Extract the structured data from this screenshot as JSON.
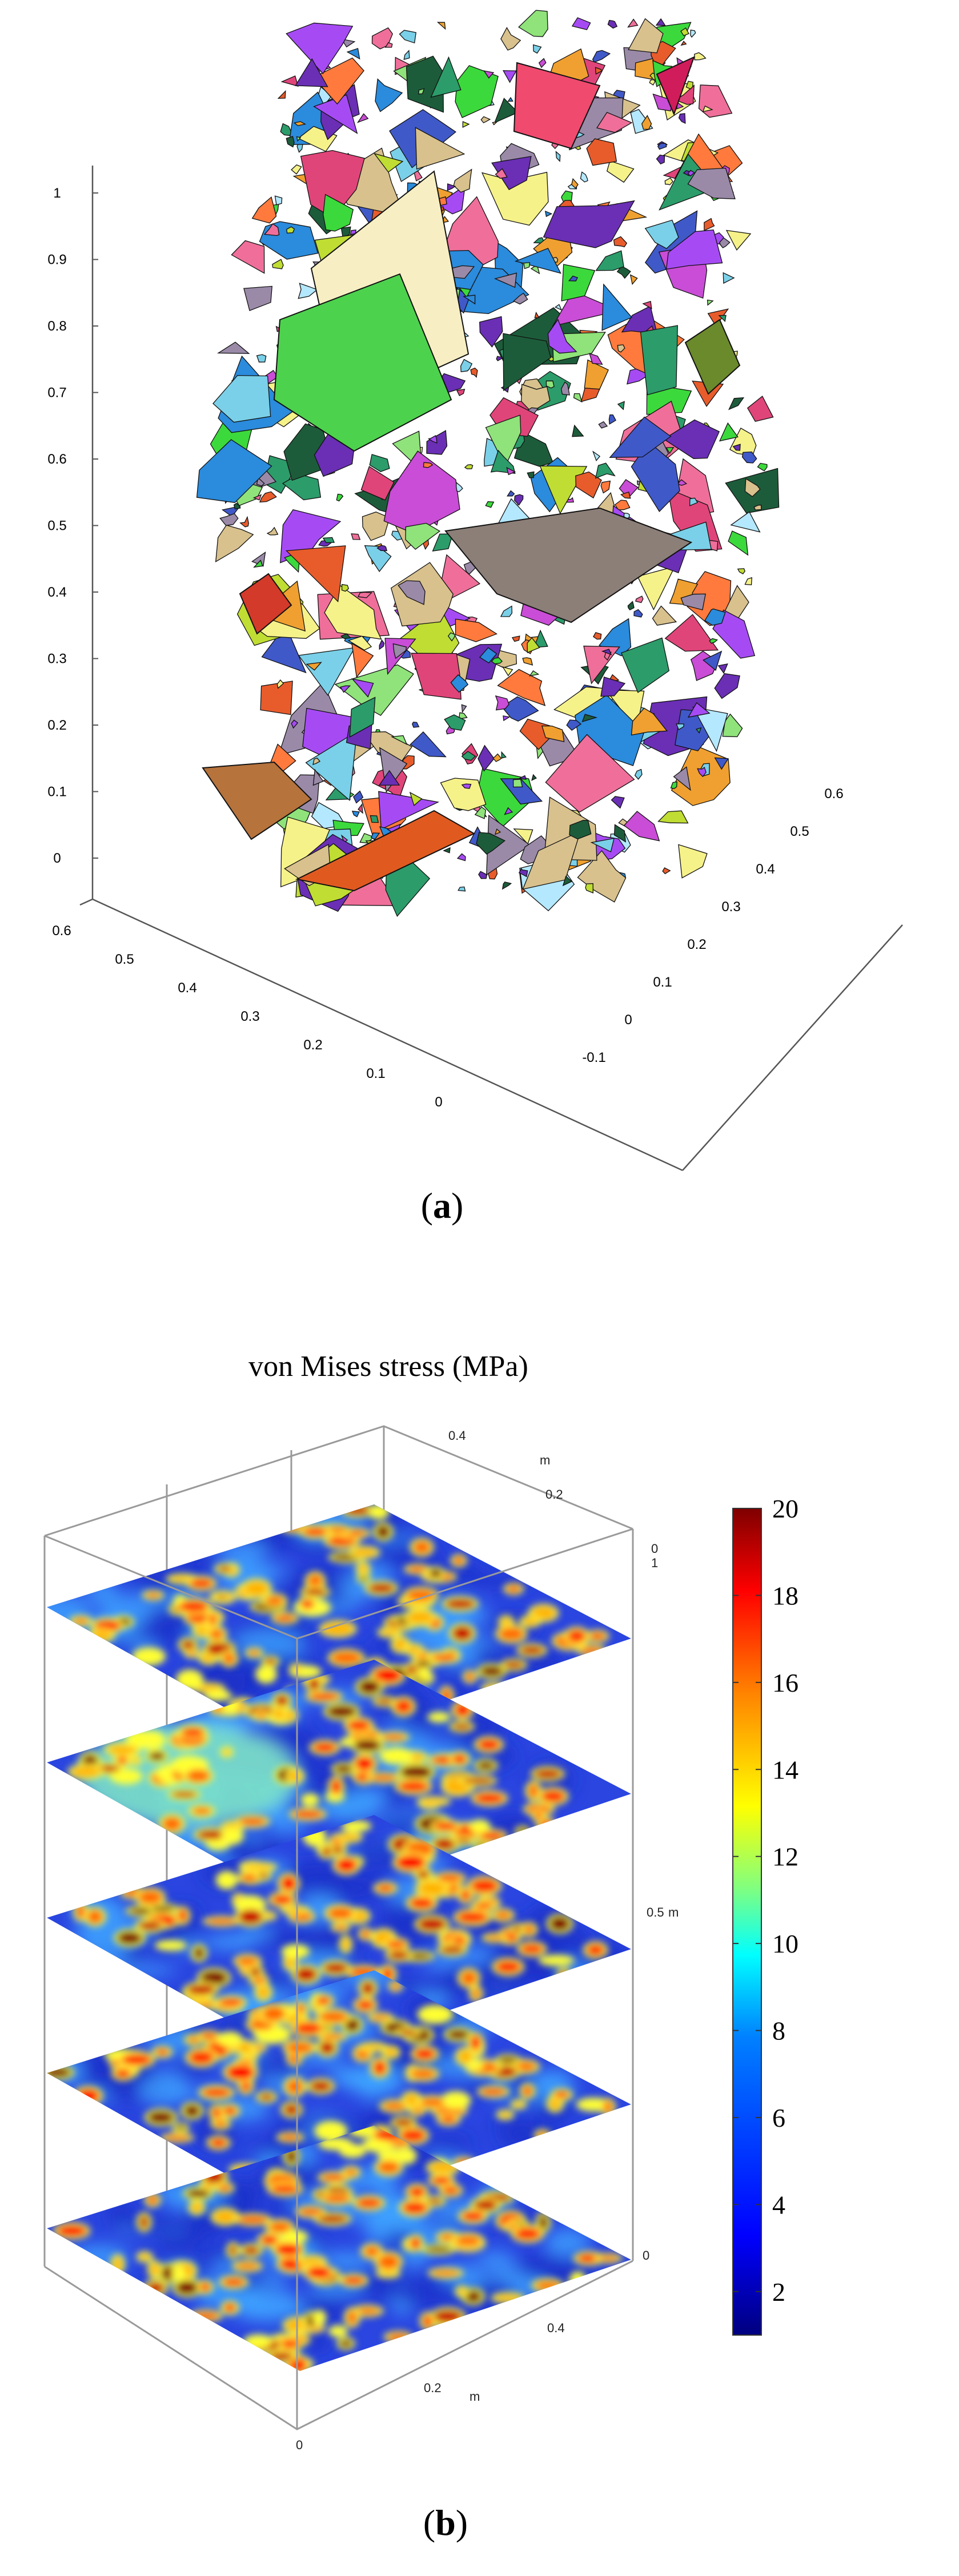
{
  "panels": {
    "a": {
      "caption_label": "a",
      "caption_open": "(",
      "caption_close": ")"
    },
    "b": {
      "caption_label": "b",
      "caption_open": "(",
      "caption_close": ")"
    }
  },
  "panel_a": {
    "z_ticks": [
      "0",
      "0.1",
      "0.2",
      "0.3",
      "0.4",
      "0.5",
      "0.6",
      "0.7",
      "0.8",
      "0.9",
      "1"
    ],
    "x_ticks": [
      "0.6",
      "0.5",
      "0.4",
      "0.3",
      "0.2",
      "0.1",
      "0"
    ],
    "y_ticks": [
      "-0.1",
      "0",
      "0.1",
      "0.2",
      "0.3",
      "0.4",
      "0.5",
      "0.6"
    ]
  },
  "panel_b": {
    "title": "von Mises stress (MPa)",
    "unit": "m",
    "axis_labels": {
      "top_0_4": "0.4",
      "top_0_2": "0.2",
      "top_0": "0",
      "right_1": "1",
      "right_0_5": "0.5",
      "right_0": "0",
      "bottom_0_4": "0.4",
      "bottom_0_2": "0.2",
      "bottom_0": "0"
    },
    "colorbar": {
      "ticks": [
        "2",
        "4",
        "6",
        "8",
        "10",
        "12",
        "14",
        "16",
        "18",
        "20"
      ],
      "min": 1,
      "max": 20,
      "colors": [
        "#00007f",
        "#0000ff",
        "#0080ff",
        "#00ffff",
        "#80ff80",
        "#ffff00",
        "#ff8000",
        "#ff0000",
        "#7f0000"
      ]
    },
    "slices": 5
  }
}
